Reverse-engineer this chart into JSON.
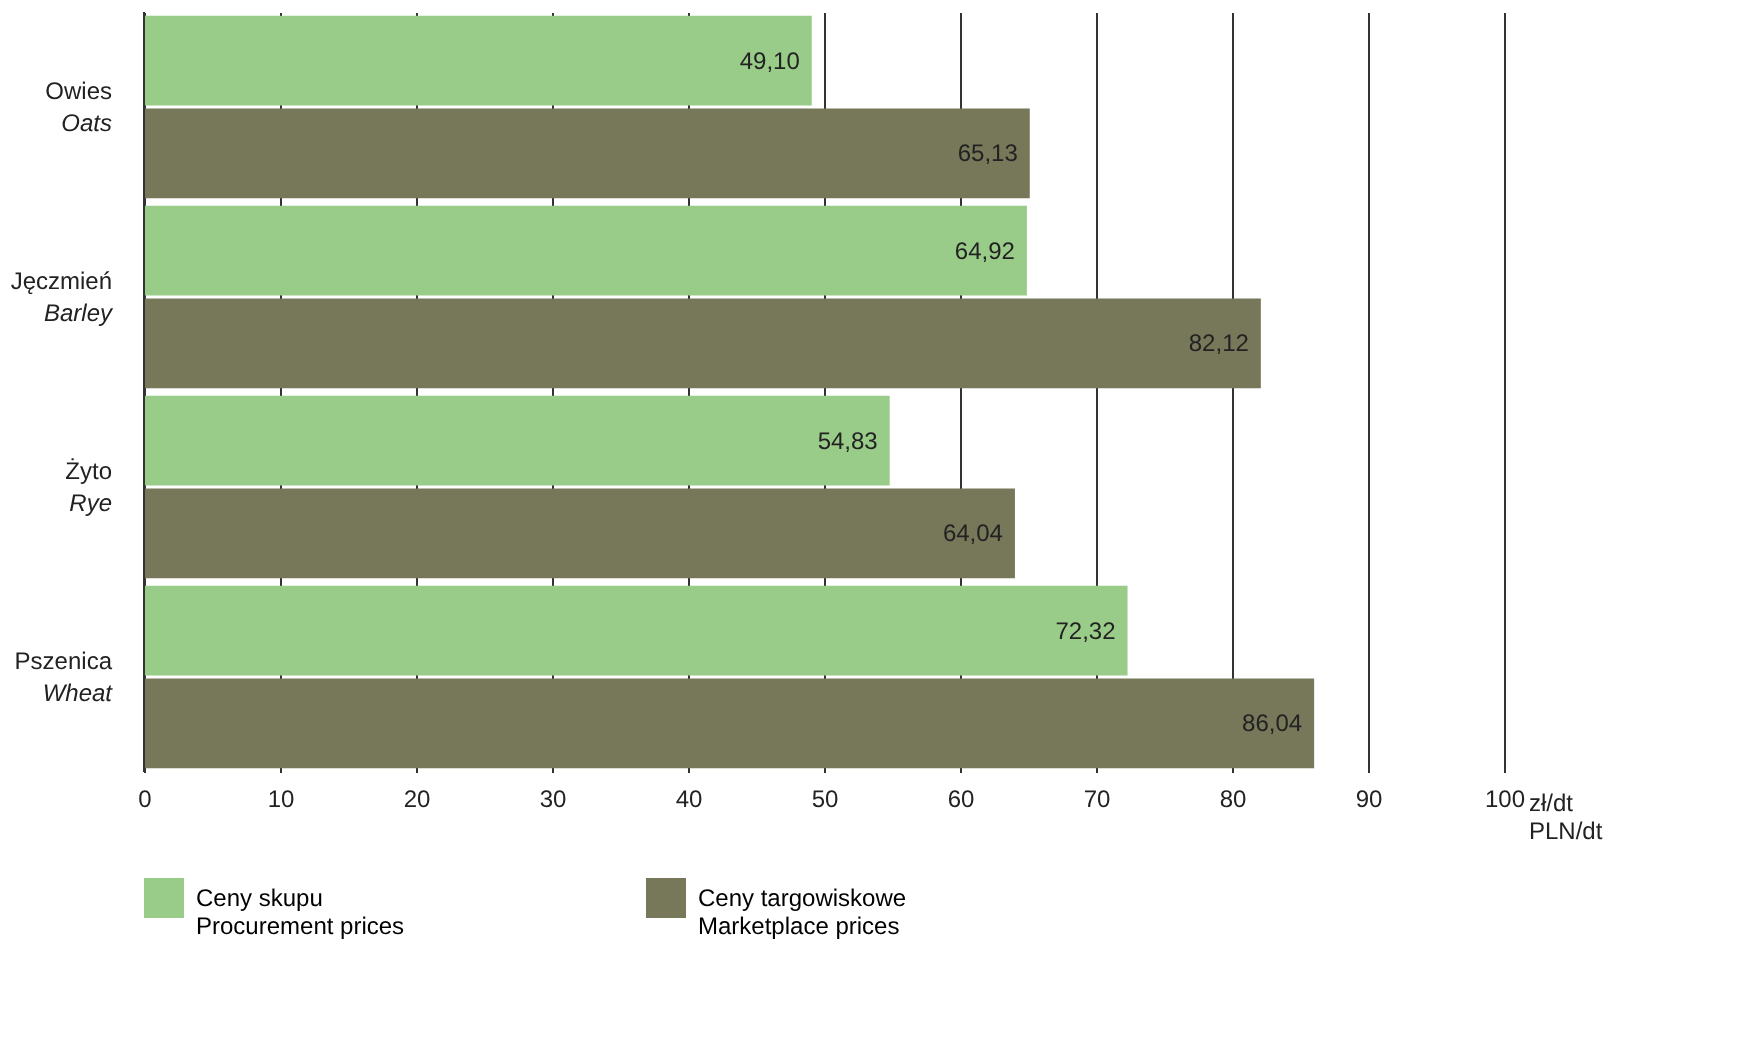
{
  "chart_data": {
    "type": "bar",
    "orientation": "horizontal",
    "categories": [
      "Owies\nOats",
      "Jęczmień\nBarley",
      "Żyto\nRye",
      "Pszenica\nWheat"
    ],
    "series": [
      {
        "name": "Ceny skupu\nProcurement prices",
        "color": "#99cc88",
        "values": [
          49.1,
          64.92,
          54.83,
          72.32
        ],
        "value_labels": [
          "49,10",
          "64,92",
          "54,83",
          "72,32"
        ]
      },
      {
        "name": "Ceny targowiskowe\nMarketplace prices",
        "color": "#77775a",
        "values": [
          65.13,
          82.12,
          64.04,
          86.04
        ],
        "value_labels": [
          "65,13",
          "82,12",
          "64,04",
          "86,04"
        ]
      }
    ],
    "xlim": [
      0,
      100
    ],
    "xticks": [
      0,
      10,
      20,
      30,
      40,
      50,
      60,
      70,
      80,
      90,
      100
    ],
    "xlabel": "zł/dt\nPLN/dt",
    "grid": "x",
    "legend": "bottom"
  }
}
